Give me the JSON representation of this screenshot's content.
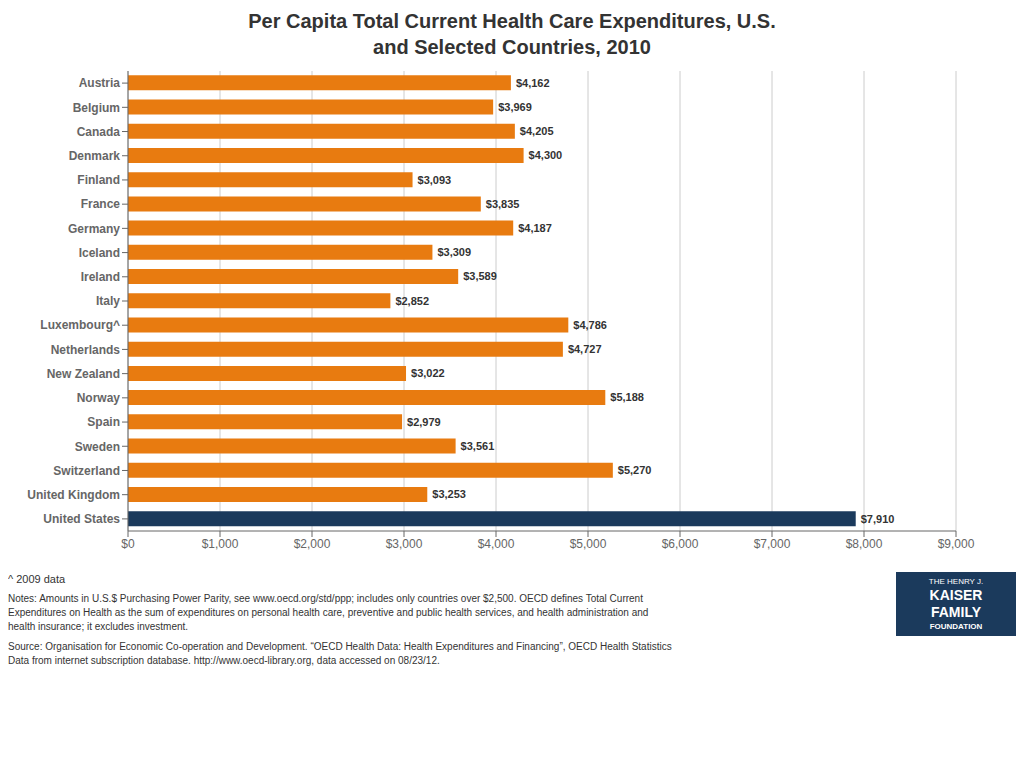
{
  "chart_data": {
    "type": "bar",
    "orientation": "horizontal",
    "title": "Per Capita Total Current Health Care Expenditures, U.S.\nand Selected Countries, 2010",
    "categories": [
      "United States",
      "United Kingdom",
      "Switzerland",
      "Sweden",
      "Spain",
      "Norway",
      "New Zealand",
      "Netherlands",
      "Luxembourg^",
      "Italy",
      "Ireland",
      "Iceland",
      "Germany",
      "France",
      "Finland",
      "Denmark",
      "Canada",
      "Belgium",
      "Austria"
    ],
    "values": [
      7910,
      3253,
      5270,
      3561,
      2979,
      5188,
      3022,
      4727,
      4786,
      2852,
      3589,
      3309,
      4187,
      3835,
      3093,
      4300,
      4205,
      3969,
      4162
    ],
    "value_labels": [
      "$7,910",
      "$3,253",
      "$5,270",
      "$3,561",
      "$2,979",
      "$5,188",
      "$3,022",
      "$4,727",
      "$4,786",
      "$2,852",
      "$3,589",
      "$3,309",
      "$4,187",
      "$3,835",
      "$3,093",
      "$4,300",
      "$4,205",
      "$3,969",
      "$4,162"
    ],
    "data_labels": true,
    "colors": [
      "#1B3A5C",
      "#E87B10",
      "#E87B10",
      "#E87B10",
      "#E87B10",
      "#E87B10",
      "#E87B10",
      "#E87B10",
      "#E87B10",
      "#E87B10",
      "#E87B10",
      "#E87B10",
      "#E87B10",
      "#E87B10",
      "#E87B10",
      "#E87B10",
      "#E87B10",
      "#E87B10",
      "#E87B10"
    ],
    "xlim": [
      0,
      9000
    ],
    "xticks": [
      {
        "value": 0,
        "label": "$0"
      },
      {
        "value": 1000,
        "label": "$1,000"
      },
      {
        "value": 2000,
        "label": "$2,000"
      },
      {
        "value": 3000,
        "label": "$3,000"
      },
      {
        "value": 4000,
        "label": "$4,000"
      },
      {
        "value": 5000,
        "label": "$5,000"
      },
      {
        "value": 6000,
        "label": "$6,000"
      },
      {
        "value": 7000,
        "label": "$7,000"
      },
      {
        "value": 8000,
        "label": "$8,000"
      },
      {
        "value": 9000,
        "label": "$9,000"
      }
    ],
    "grid": true,
    "annotations": [
      "^ 2009 data",
      "Notes:  Amounts in U.S.$ Purchasing Power Parity, see www.oecd.org/std/ppp; includes only countries over $2,500.  OECD defines Total Current\nExpenditures on Health as the sum of expenditures on personal health care, preventive and public health services, and health administration and\nhealth insurance; it excludes investment.",
      "Source:  Organisation for Economic Co-operation and Development. “OECD Health Data: Health Expenditures and Financing”, OECD Health Statistics\nData from internet subscription database. http://www.oecd-library.org, data accessed on 08/23/12.",
      "THE HENRY J.",
      "KAISER",
      "FAMILY",
      "FOUNDATION"
    ]
  }
}
